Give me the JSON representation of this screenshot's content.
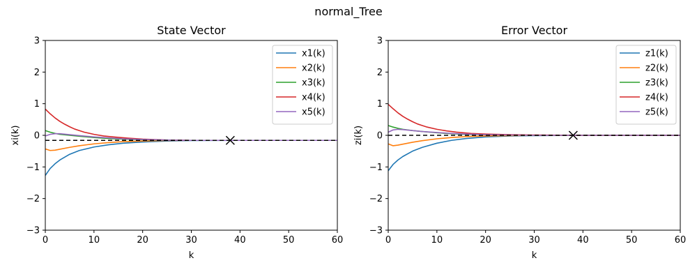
{
  "figure": {
    "suptitle": "normal_Tree"
  },
  "chart_data": [
    {
      "type": "line",
      "title": "State Vector",
      "xlabel": "k",
      "ylabel": "xi(k)",
      "xlim": [
        0,
        60
      ],
      "ylim": [
        -3,
        3
      ],
      "xticks": [
        "0",
        "10",
        "20",
        "30",
        "40",
        "50",
        "60"
      ],
      "yticks": [
        "−3",
        "−2",
        "−1",
        "0",
        "1",
        "2",
        "3"
      ],
      "legend_position": "top-right",
      "series": [
        {
          "name": "x1(k)",
          "color": "#1f77b4",
          "x": [
            0,
            1,
            2,
            3,
            5,
            7,
            10,
            13,
            16,
            20,
            25,
            30,
            40,
            60
          ],
          "values": [
            -1.27,
            -1.05,
            -0.9,
            -0.78,
            -0.6,
            -0.48,
            -0.37,
            -0.3,
            -0.25,
            -0.21,
            -0.18,
            -0.165,
            -0.16,
            -0.16
          ]
        },
        {
          "name": "x2(k)",
          "color": "#ff7f0e",
          "x": [
            0,
            1,
            2,
            3,
            5,
            7,
            10,
            13,
            16,
            20,
            25,
            30,
            40,
            60
          ],
          "values": [
            -0.43,
            -0.48,
            -0.47,
            -0.44,
            -0.38,
            -0.33,
            -0.27,
            -0.23,
            -0.2,
            -0.18,
            -0.165,
            -0.16,
            -0.16,
            -0.16
          ]
        },
        {
          "name": "x3(k)",
          "color": "#2ca02c",
          "x": [
            0,
            1,
            2,
            3,
            5,
            7,
            10,
            13,
            16,
            20,
            25,
            30,
            40,
            60
          ],
          "values": [
            0.15,
            0.1,
            0.06,
            0.03,
            0.0,
            -0.03,
            -0.07,
            -0.1,
            -0.12,
            -0.14,
            -0.155,
            -0.16,
            -0.16,
            -0.16
          ]
        },
        {
          "name": "x4(k)",
          "color": "#d62728",
          "x": [
            0,
            1,
            2,
            3,
            4,
            5,
            6,
            7,
            8,
            10,
            12,
            14,
            17,
            20,
            25,
            30,
            40,
            60
          ],
          "values": [
            0.83,
            0.68,
            0.55,
            0.44,
            0.35,
            0.27,
            0.2,
            0.15,
            0.1,
            0.03,
            -0.02,
            -0.05,
            -0.09,
            -0.12,
            -0.15,
            -0.16,
            -0.16,
            -0.16
          ]
        },
        {
          "name": "x5(k)",
          "color": "#9467bd",
          "x": [
            0,
            1,
            2,
            3,
            5,
            7,
            10,
            13,
            16,
            20,
            25,
            30,
            40,
            60
          ],
          "values": [
            -0.02,
            0.03,
            0.05,
            0.05,
            0.02,
            -0.01,
            -0.05,
            -0.08,
            -0.11,
            -0.13,
            -0.15,
            -0.16,
            -0.16,
            -0.16
          ]
        }
      ],
      "reference_line": {
        "y": -0.16,
        "style": "dashed",
        "color": "#000000"
      },
      "marker": {
        "x": 38,
        "y": -0.16,
        "symbol": "x",
        "color": "#000000"
      }
    },
    {
      "type": "line",
      "title": "Error Vector",
      "xlabel": "k",
      "ylabel": "zi(k)",
      "xlim": [
        0,
        60
      ],
      "ylim": [
        -3,
        3
      ],
      "xticks": [
        "0",
        "10",
        "20",
        "30",
        "40",
        "50",
        "60"
      ],
      "yticks": [
        "−3",
        "−2",
        "−1",
        "0",
        "1",
        "2",
        "3"
      ],
      "legend_position": "top-right",
      "series": [
        {
          "name": "z1(k)",
          "color": "#1f77b4",
          "x": [
            0,
            1,
            2,
            3,
            5,
            7,
            10,
            13,
            16,
            20,
            25,
            30,
            40,
            60
          ],
          "values": [
            -1.12,
            -0.92,
            -0.78,
            -0.67,
            -0.5,
            -0.38,
            -0.25,
            -0.16,
            -0.1,
            -0.05,
            -0.02,
            -0.01,
            0.0,
            0.0
          ]
        },
        {
          "name": "z2(k)",
          "color": "#ff7f0e",
          "x": [
            0,
            1,
            2,
            3,
            5,
            7,
            10,
            13,
            16,
            20,
            25,
            30,
            40,
            60
          ],
          "values": [
            -0.27,
            -0.33,
            -0.31,
            -0.28,
            -0.22,
            -0.17,
            -0.11,
            -0.07,
            -0.04,
            -0.02,
            -0.01,
            0.0,
            0.0,
            0.0
          ]
        },
        {
          "name": "z3(k)",
          "color": "#2ca02c",
          "x": [
            0,
            1,
            2,
            3,
            5,
            7,
            10,
            13,
            16,
            20,
            25,
            30,
            40,
            60
          ],
          "values": [
            0.31,
            0.26,
            0.22,
            0.19,
            0.15,
            0.12,
            0.08,
            0.05,
            0.03,
            0.02,
            0.01,
            0.0,
            0.0,
            0.0
          ]
        },
        {
          "name": "z4(k)",
          "color": "#d62728",
          "x": [
            0,
            1,
            2,
            3,
            4,
            5,
            6,
            7,
            8,
            10,
            12,
            14,
            17,
            20,
            25,
            30,
            40,
            60
          ],
          "values": [
            0.98,
            0.84,
            0.71,
            0.6,
            0.51,
            0.43,
            0.36,
            0.31,
            0.26,
            0.19,
            0.14,
            0.1,
            0.06,
            0.04,
            0.02,
            0.01,
            0.0,
            0.0
          ]
        },
        {
          "name": "z5(k)",
          "color": "#9467bd",
          "x": [
            0,
            1,
            2,
            3,
            5,
            7,
            10,
            13,
            16,
            20,
            25,
            30,
            40,
            60
          ],
          "values": [
            0.1,
            0.17,
            0.19,
            0.18,
            0.15,
            0.12,
            0.09,
            0.06,
            0.04,
            0.02,
            0.01,
            0.0,
            0.0,
            0.0
          ]
        }
      ],
      "reference_line": {
        "y": 0,
        "style": "dashed",
        "color": "#000000"
      },
      "marker": {
        "x": 38,
        "y": 0,
        "symbol": "x",
        "color": "#000000"
      }
    }
  ]
}
